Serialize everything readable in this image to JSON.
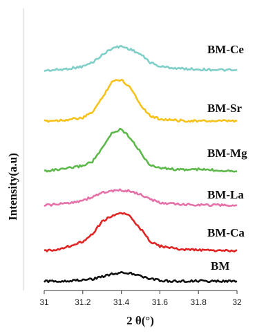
{
  "chart_data": {
    "type": "line",
    "title": "",
    "xlabel": "2 θ(°)",
    "ylabel": "Intensity(a.u)",
    "xlim": [
      31,
      32
    ],
    "x_ticks": [
      "31",
      "31.2",
      "31.4",
      "31.6",
      "31.8",
      "32"
    ],
    "y_ticks_shown": false,
    "grid": false,
    "legend": "inline labels at right",
    "series": [
      {
        "name": "BM-Ce",
        "color": "#7fcfc8",
        "x": [
          31.0,
          31.1,
          31.2,
          31.25,
          31.3,
          31.35,
          31.4,
          31.45,
          31.5,
          31.55,
          31.6,
          31.7,
          31.8,
          31.9,
          32.0
        ],
        "y": [
          0.0,
          0.03,
          0.1,
          0.2,
          0.38,
          0.55,
          0.6,
          0.52,
          0.4,
          0.2,
          0.1,
          0.05,
          0.03,
          0.02,
          0.0
        ]
      },
      {
        "name": "BM-Sr",
        "color": "#f5c21b",
        "x": [
          31.0,
          31.1,
          31.2,
          31.25,
          31.3,
          31.35,
          31.4,
          31.45,
          31.5,
          31.55,
          31.6,
          31.7,
          31.8,
          31.9,
          32.0
        ],
        "y": [
          0.0,
          0.02,
          0.06,
          0.18,
          0.45,
          0.78,
          0.82,
          0.65,
          0.32,
          0.1,
          0.04,
          0.01,
          0.0,
          0.0,
          0.0
        ]
      },
      {
        "name": "BM-Mg",
        "color": "#5db84a",
        "x": [
          31.0,
          31.1,
          31.2,
          31.25,
          31.3,
          31.35,
          31.4,
          31.45,
          31.5,
          31.55,
          31.6,
          31.7,
          31.8,
          31.9,
          32.0
        ],
        "y": [
          0.0,
          0.03,
          0.1,
          0.18,
          0.42,
          0.72,
          0.8,
          0.62,
          0.35,
          0.1,
          0.06,
          0.02,
          0.03,
          0.01,
          0.0
        ]
      },
      {
        "name": "BM-La",
        "color": "#e670a8",
        "x": [
          31.0,
          31.1,
          31.2,
          31.25,
          31.3,
          31.35,
          31.4,
          31.45,
          31.5,
          31.55,
          31.6,
          31.7,
          31.8,
          31.9,
          32.0
        ],
        "y": [
          0.0,
          0.05,
          0.15,
          0.25,
          0.38,
          0.42,
          0.45,
          0.42,
          0.32,
          0.18,
          0.08,
          0.03,
          0.02,
          0.01,
          0.0
        ]
      },
      {
        "name": "BM-Ca",
        "color": "#e02424",
        "x": [
          31.0,
          31.1,
          31.2,
          31.25,
          31.3,
          31.35,
          31.4,
          31.45,
          31.5,
          31.55,
          31.6,
          31.7,
          31.8,
          31.9,
          32.0
        ],
        "y": [
          0.0,
          0.06,
          0.2,
          0.35,
          0.6,
          0.72,
          0.78,
          0.7,
          0.45,
          0.2,
          0.1,
          0.04,
          0.02,
          0.01,
          0.0
        ]
      },
      {
        "name": "BM",
        "color": "#111111",
        "x": [
          31.0,
          31.1,
          31.2,
          31.25,
          31.3,
          31.35,
          31.4,
          31.45,
          31.5,
          31.55,
          31.6,
          31.7,
          31.8,
          31.9,
          32.0
        ],
        "y": [
          0.0,
          0.02,
          0.06,
          0.1,
          0.2,
          0.3,
          0.35,
          0.32,
          0.22,
          0.1,
          0.04,
          0.01,
          0.02,
          0.01,
          0.0
        ]
      }
    ]
  }
}
